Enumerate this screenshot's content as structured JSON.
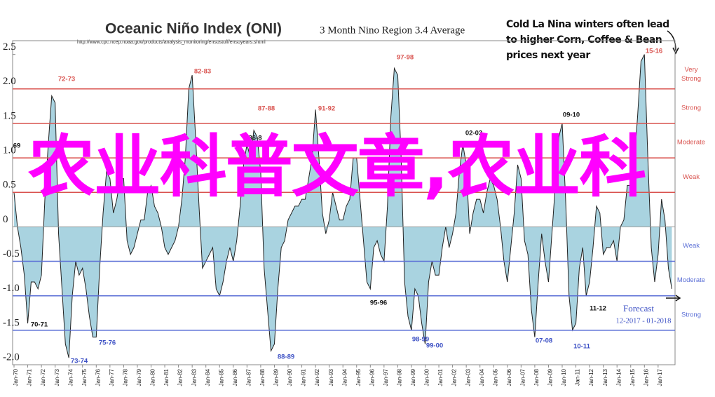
{
  "chart_data": {
    "type": "area",
    "title": "Oceanic Niño Index (ONI)",
    "subtitle": "3 Month Nino Region 3.4 Average",
    "source": "http://www.cpc.ncep.noaa.gov/products/analysis_monitoring/ensostuff/ensoyears.shtml",
    "annotation": "Cold La Nina winters often lead to higher Corn, Coffee & Bean prices next year",
    "overlay_text": "农业科普文章,农业科",
    "ylim": [
      -2.0,
      2.7
    ],
    "yticks": [
      {
        "value": 2.5,
        "label": "2.5"
      },
      {
        "value": 2,
        "label": "2.0"
      },
      {
        "value": 1.5,
        "label": "1.5"
      },
      {
        "value": 1,
        "label": "1.0"
      },
      {
        "value": 0.5,
        "label": "0.5"
      },
      0,
      {
        "value": -0.5,
        "label": "-0.5"
      },
      {
        "value": -1,
        "label": "-1.0"
      },
      {
        "value": -1.5,
        "label": "-1.5"
      },
      {
        "value": -2,
        "label": "-2.0"
      }
    ],
    "thresholds": [
      {
        "value": 2,
        "label": "Very Strong",
        "color": "#d9534f"
      },
      {
        "value": 1.5,
        "label": "Strong",
        "color": "#d9534f"
      },
      {
        "value": 1,
        "label": "Moderate",
        "color": "#d9534f"
      },
      {
        "value": 0.5,
        "label": "Weak",
        "color": "#d9534f"
      },
      {
        "value": -0.5,
        "label": "Weak",
        "color": "#5b6fd6"
      },
      {
        "value": -1,
        "label": "Moderate",
        "color": "#5b6fd6"
      },
      {
        "value": -1.5,
        "label": "Strong",
        "color": "#5b6fd6"
      }
    ],
    "event_labels": [
      "72-73",
      "82-83",
      "97-98",
      "15-16",
      "87-88",
      "91-92",
      "86-8",
      "02-03",
      "09-10",
      "69",
      "70-71",
      "73-74",
      "75-76",
      "88-89",
      "95-96",
      "98-99",
      "99-00",
      "07-08",
      "10-11",
      "11-12",
      "Forecast",
      "12-2017 - 01-2018"
    ],
    "fill": "#a9d3e0",
    "line_color": "#222222",
    "categories": [
      "Jan-70",
      null,
      null,
      null,
      "Jan-71",
      null,
      null,
      null,
      "Jan-72",
      null,
      null,
      null,
      "Jan-73",
      null,
      null,
      null,
      "Jan-74",
      null,
      null,
      null,
      "Jan-75",
      null,
      null,
      null,
      "Jan-76",
      null,
      null,
      null,
      "Jan-77",
      null,
      null,
      null,
      "Jan-78",
      null,
      null,
      null,
      "Jan-79",
      null,
      null,
      null,
      "Jan-80",
      null,
      null,
      null,
      "Jan-81",
      null,
      null,
      null,
      "Jan-82",
      null,
      null,
      null,
      "Jan-83",
      null,
      null,
      null,
      "Jan-84",
      null,
      null,
      null,
      "Jan-85",
      null,
      null,
      null,
      "Jan-86",
      null,
      null,
      null,
      "Jan-87",
      null,
      null,
      null,
      "Jan-88",
      null,
      null,
      null,
      "Jan-89",
      null,
      null,
      null,
      "Jan-90",
      null,
      null,
      null,
      "Jan-91",
      null,
      null,
      null,
      "Jan-92",
      null,
      null,
      null,
      "Jan-93",
      null,
      null,
      null,
      "Jan-94",
      null,
      null,
      null,
      "Jan-95",
      null,
      null,
      null,
      "Jan-96",
      null,
      null,
      null,
      "Jan-97",
      null,
      null,
      null,
      "Jan-98",
      null,
      null,
      null,
      "Jan-99",
      null,
      null,
      null,
      "Jan-00",
      null,
      null,
      null,
      "Jan-01",
      null,
      null,
      null,
      "Jan-02",
      null,
      null,
      null,
      "Jan-03",
      null,
      null,
      null,
      "Jan-04",
      null,
      null,
      null,
      "Jan-05",
      null,
      null,
      null,
      "Jan-06",
      null,
      null,
      null,
      "Jan-07",
      null,
      null,
      null,
      "Jan-08",
      null,
      null,
      null,
      "Jan-09",
      null,
      null,
      null,
      "Jan-10",
      null,
      null,
      null,
      "Jan-11",
      null,
      null,
      null,
      "Jan-12",
      null,
      null,
      null,
      "Jan-13",
      null,
      null,
      null,
      "Jan-14",
      null,
      null,
      null,
      "Jan-15",
      null,
      null,
      null,
      "Jan-16",
      null,
      null,
      null,
      "Jan-17",
      null,
      null,
      null,
      null
    ],
    "values": [
      0.5,
      0.0,
      -0.3,
      -0.7,
      -1.4,
      -0.8,
      -0.8,
      -0.9,
      -0.7,
      0.4,
      1.2,
      1.9,
      1.8,
      -0.1,
      -0.9,
      -1.7,
      -1.9,
      -1.0,
      -0.5,
      -0.7,
      -0.6,
      -0.9,
      -1.3,
      -1.6,
      -1.6,
      -0.6,
      0.2,
      0.8,
      0.7,
      0.2,
      0.4,
      0.7,
      0.7,
      -0.2,
      -0.4,
      -0.3,
      -0.1,
      0.1,
      0.1,
      0.5,
      0.6,
      0.3,
      0.2,
      0.0,
      -0.3,
      -0.4,
      -0.3,
      -0.2,
      0.0,
      0.4,
      1.0,
      2.0,
      2.2,
      1.3,
      0.3,
      -0.6,
      -0.5,
      -0.4,
      -0.3,
      -0.9,
      -1.0,
      -0.8,
      -0.5,
      -0.3,
      -0.5,
      -0.2,
      0.3,
      0.9,
      1.2,
      1.0,
      1.4,
      1.3,
      0.8,
      -0.6,
      -1.2,
      -1.8,
      -1.7,
      -0.9,
      -0.3,
      -0.2,
      0.1,
      0.2,
      0.3,
      0.3,
      0.4,
      0.4,
      0.7,
      1.0,
      1.7,
      1.0,
      0.2,
      -0.1,
      0.1,
      0.5,
      0.3,
      0.1,
      0.1,
      0.3,
      0.4,
      1.0,
      1.0,
      0.4,
      -0.2,
      -0.8,
      -0.9,
      -0.3,
      -0.2,
      -0.4,
      -0.5,
      0.3,
      1.6,
      2.3,
      2.2,
      1.0,
      -0.8,
      -1.3,
      -1.5,
      -0.9,
      -1.0,
      -1.4,
      -1.7,
      -0.8,
      -0.5,
      -0.7,
      -0.7,
      -0.3,
      0.0,
      -0.3,
      -0.1,
      0.2,
      0.8,
      1.2,
      0.9,
      -0.1,
      0.2,
      0.4,
      0.4,
      0.2,
      0.5,
      0.7,
      0.6,
      0.4,
      0.0,
      -0.5,
      -0.8,
      -0.3,
      0.2,
      0.9,
      0.7,
      -0.2,
      -0.4,
      -1.2,
      -1.6,
      -0.8,
      -0.1,
      -0.5,
      -0.8,
      -0.1,
      0.6,
      1.3,
      1.5,
      0.4,
      -1.0,
      -1.5,
      -1.4,
      -0.6,
      -0.3,
      -1.0,
      -0.8,
      -0.3,
      0.3,
      0.2,
      -0.4,
      -0.3,
      -0.3,
      -0.2,
      -0.5,
      0.0,
      0.1,
      0.6,
      0.6,
      0.9,
      1.6,
      2.4,
      2.5,
      1.0,
      -0.3,
      -0.8,
      -0.4,
      0.4,
      0.1,
      -0.6,
      -0.9
    ]
  }
}
